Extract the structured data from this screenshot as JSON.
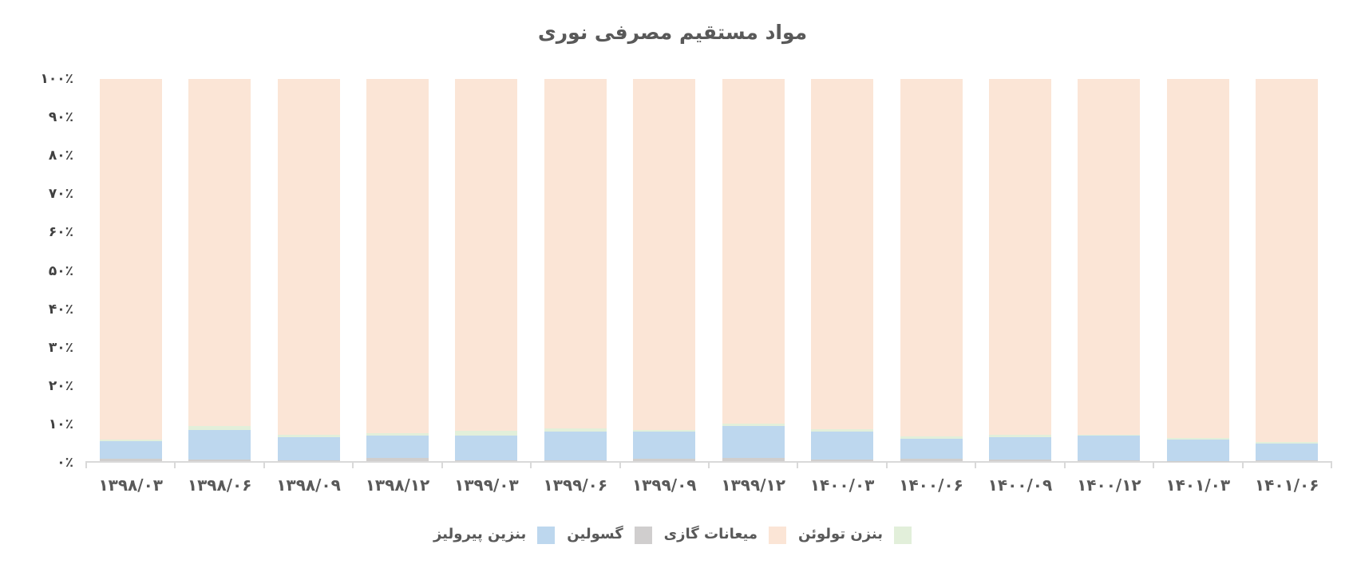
{
  "chart_data": {
    "type": "bar",
    "subtype": "stacked-100-percent",
    "title": "مواد مستقیم مصرفی نوری",
    "xlabel": "",
    "ylabel": "",
    "ylim": [
      0,
      100
    ],
    "grid": false,
    "axis_color": "#D9D9D9",
    "title_color": "#595959",
    "tick_label_color": "#404040",
    "categories": [
      "۱۳۹۸/۰۳",
      "۱۳۹۸/۰۶",
      "۱۳۹۸/۰۹",
      "۱۳۹۸/۱۲",
      "۱۳۹۹/۰۳",
      "۱۳۹۹/۰۶",
      "۱۳۹۹/۰۹",
      "۱۳۹۹/۱۲",
      "۱۴۰۰/۰۳",
      "۱۴۰۰/۰۶",
      "۱۴۰۰/۰۹",
      "۱۴۰۰/۱۲",
      "۱۴۰۱/۰۳",
      "۱۴۰۱/۰۶"
    ],
    "yticks": [
      "۰٪",
      "۱۰٪",
      "۲۰٪",
      "۳۰٪",
      "۴۰٪",
      "۵۰٪",
      "۶۰٪",
      "۷۰٪",
      "۸۰٪",
      "۹۰٪",
      "۱۰۰٪"
    ],
    "series": [
      {
        "name": "گسولین",
        "color": "#D0CECD",
        "values": [
          0.6,
          0.5,
          0.3,
          0.8,
          0.3,
          0.3,
          0.6,
          0.8,
          0.4,
          0.6,
          0.4,
          0.2,
          0.1,
          0.3
        ]
      },
      {
        "name": "بنزین پیرولیز",
        "color": "#BDD7EE",
        "values": [
          4.6,
          7.7,
          6.0,
          5.8,
          6.4,
          7.5,
          7.1,
          8.4,
          7.4,
          5.3,
          5.9,
          6.4,
          5.5,
          4.4
        ]
      },
      {
        "name": "بنزن تولوئن",
        "color": "#E2EFDA",
        "values": [
          0.4,
          1.0,
          0.7,
          0.7,
          1.3,
          0.7,
          0.5,
          0.6,
          0.5,
          0.5,
          0.6,
          0.3,
          0.5,
          0.3
        ]
      },
      {
        "name": "میعانات گازی",
        "color": "#FBE5D6",
        "values": [
          94.4,
          90.8,
          93.0,
          92.7,
          92.0,
          91.5,
          91.8,
          90.2,
          91.7,
          93.6,
          93.1,
          93.1,
          93.9,
          95.0
        ]
      }
    ],
    "legend": {
      "position": "bottom-center",
      "rtl_order_items": [
        {
          "label": "بنزن تولوئن",
          "color": "#E2EFDA"
        },
        {
          "label": "میعانات گازی",
          "color": "#FBE5D6"
        },
        {
          "label": "گسولین",
          "color": "#D0CECE"
        },
        {
          "label": "بنزین پیرولیز",
          "color": "#BDD7EE"
        }
      ]
    }
  }
}
